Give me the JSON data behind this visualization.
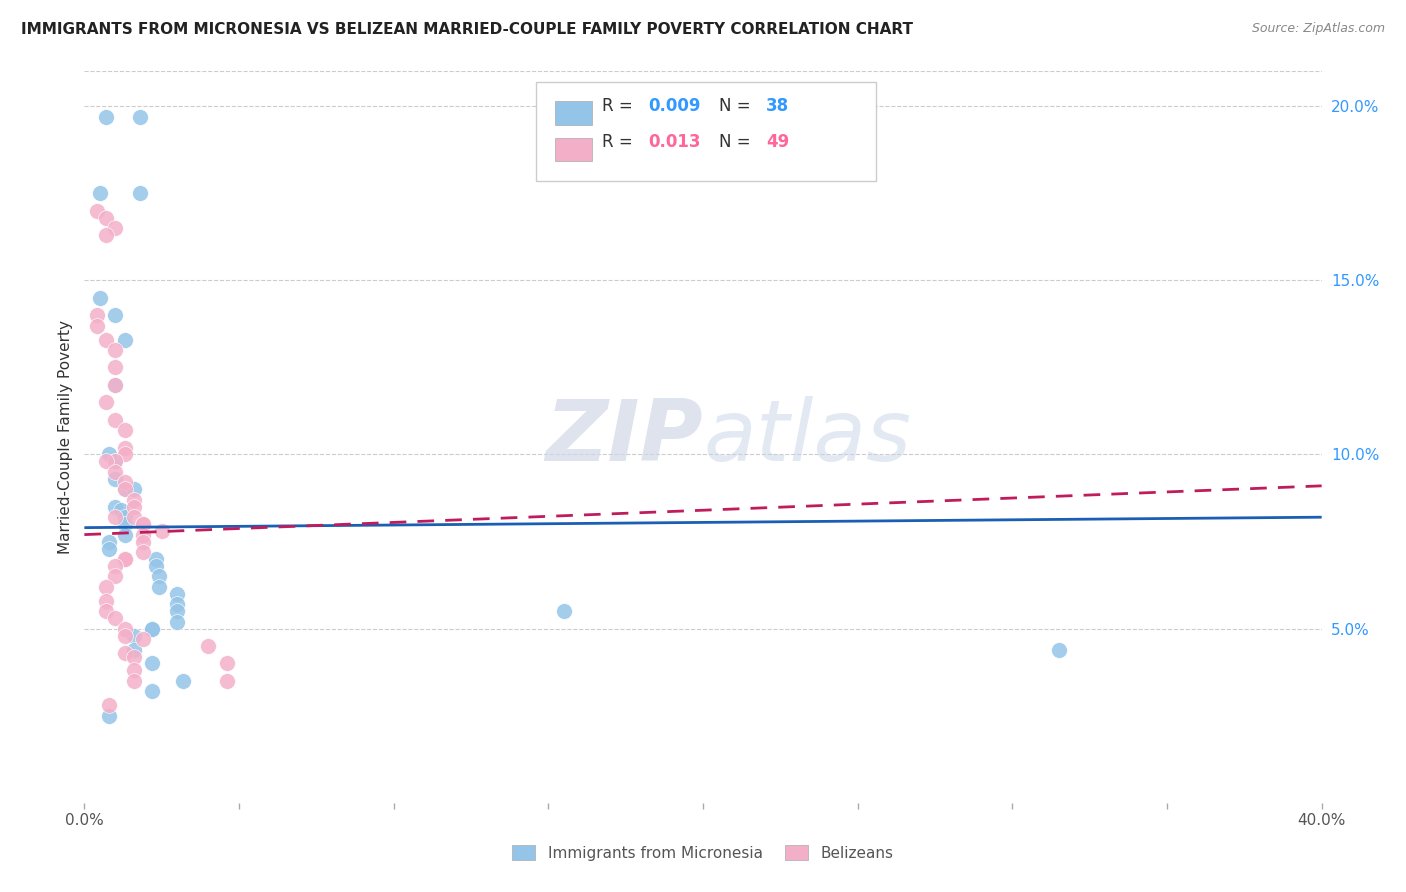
{
  "title": "IMMIGRANTS FROM MICRONESIA VS BELIZEAN MARRIED-COUPLE FAMILY POVERTY CORRELATION CHART",
  "source": "Source: ZipAtlas.com",
  "ylabel": "Married-Couple Family Poverty",
  "xlim": [
    0.0,
    0.4
  ],
  "ylim": [
    0.0,
    0.21
  ],
  "xticks": [
    0.0,
    0.05,
    0.1,
    0.15,
    0.2,
    0.25,
    0.3,
    0.35,
    0.4
  ],
  "yticks_right": [
    0.05,
    0.1,
    0.15,
    0.2
  ],
  "yticklabels_right": [
    "5.0%",
    "10.0%",
    "15.0%",
    "20.0%"
  ],
  "color_blue": "#94c4e8",
  "color_pink": "#f4afc8",
  "color_blue_text": "#3399ff",
  "color_pink_text": "#ff6699",
  "trendline_blue_color": "#1a5fb4",
  "trendline_pink_color": "#c01c5c",
  "blue_trendline_y0": 0.079,
  "blue_trendline_y1": 0.082,
  "pink_trendline_y0": 0.077,
  "pink_trendline_y1": 0.091,
  "blue_points_x": [
    0.007,
    0.018,
    0.018,
    0.005,
    0.005,
    0.01,
    0.013,
    0.01,
    0.008,
    0.01,
    0.01,
    0.013,
    0.016,
    0.01,
    0.012,
    0.013,
    0.013,
    0.013,
    0.008,
    0.008,
    0.023,
    0.023,
    0.024,
    0.024,
    0.03,
    0.03,
    0.03,
    0.03,
    0.022,
    0.022,
    0.016,
    0.016,
    0.022,
    0.022,
    0.155,
    0.315,
    0.008,
    0.032
  ],
  "blue_points_y": [
    0.197,
    0.197,
    0.175,
    0.175,
    0.145,
    0.14,
    0.133,
    0.12,
    0.1,
    0.098,
    0.093,
    0.09,
    0.09,
    0.085,
    0.084,
    0.082,
    0.08,
    0.077,
    0.075,
    0.073,
    0.07,
    0.068,
    0.065,
    0.062,
    0.06,
    0.057,
    0.055,
    0.052,
    0.05,
    0.05,
    0.048,
    0.044,
    0.04,
    0.032,
    0.055,
    0.044,
    0.025,
    0.035
  ],
  "pink_points_x": [
    0.004,
    0.007,
    0.01,
    0.007,
    0.004,
    0.004,
    0.007,
    0.01,
    0.01,
    0.01,
    0.007,
    0.01,
    0.013,
    0.013,
    0.013,
    0.01,
    0.007,
    0.01,
    0.013,
    0.013,
    0.016,
    0.016,
    0.016,
    0.019,
    0.019,
    0.019,
    0.019,
    0.019,
    0.013,
    0.013,
    0.01,
    0.01,
    0.007,
    0.007,
    0.007,
    0.01,
    0.013,
    0.013,
    0.013,
    0.016,
    0.016,
    0.016,
    0.019,
    0.025,
    0.04,
    0.046,
    0.046,
    0.008,
    0.01
  ],
  "pink_points_y": [
    0.17,
    0.168,
    0.165,
    0.163,
    0.14,
    0.137,
    0.133,
    0.13,
    0.125,
    0.12,
    0.115,
    0.11,
    0.107,
    0.102,
    0.1,
    0.098,
    0.098,
    0.095,
    0.092,
    0.09,
    0.087,
    0.085,
    0.082,
    0.08,
    0.08,
    0.077,
    0.075,
    0.072,
    0.07,
    0.07,
    0.068,
    0.065,
    0.062,
    0.058,
    0.055,
    0.053,
    0.05,
    0.048,
    0.043,
    0.042,
    0.038,
    0.035,
    0.047,
    0.078,
    0.045,
    0.04,
    0.035,
    0.028,
    0.082
  ],
  "background_color": "#ffffff",
  "grid_color": "#cccccc",
  "watermark": "ZIPatlas",
  "watermark_zip": "ZIP",
  "watermark_atlas": "atlas",
  "legend_blue_r": "0.009",
  "legend_blue_n": "38",
  "legend_pink_r": "0.013",
  "legend_pink_n": "49"
}
